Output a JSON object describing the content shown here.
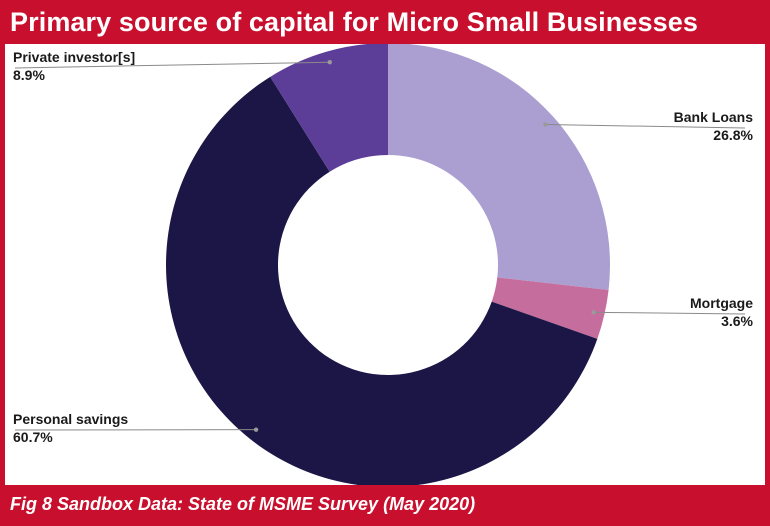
{
  "title": "Primary source of capital for Micro Small Businesses",
  "footer": "Fig 8 Sandbox Data: State of MSME Survey (May 2020)",
  "colors": {
    "frame": "#c8102e",
    "bank_loans": "#ab9fd2",
    "mortgage": "#c56d9c",
    "personal_savings": "#1c1646",
    "private_investors": "#5c3e99"
  },
  "chart_data": {
    "type": "pie",
    "subtype": "donut",
    "title": "Primary source of capital for Micro Small Businesses",
    "slices": [
      {
        "label": "Bank Loans",
        "value": 26.8,
        "display": "26.8%",
        "color": "#ab9fd2"
      },
      {
        "label": "Mortgage",
        "value": 3.6,
        "display": "3.6%",
        "color": "#c56d9c"
      },
      {
        "label": "Personal savings",
        "value": 60.7,
        "display": "60.7%",
        "color": "#1c1646"
      },
      {
        "label": "Private investor[s]",
        "value": 8.9,
        "display": "8.9%",
        "color": "#5c3e99"
      }
    ],
    "start": "12 o'clock",
    "direction": "clockwise"
  }
}
